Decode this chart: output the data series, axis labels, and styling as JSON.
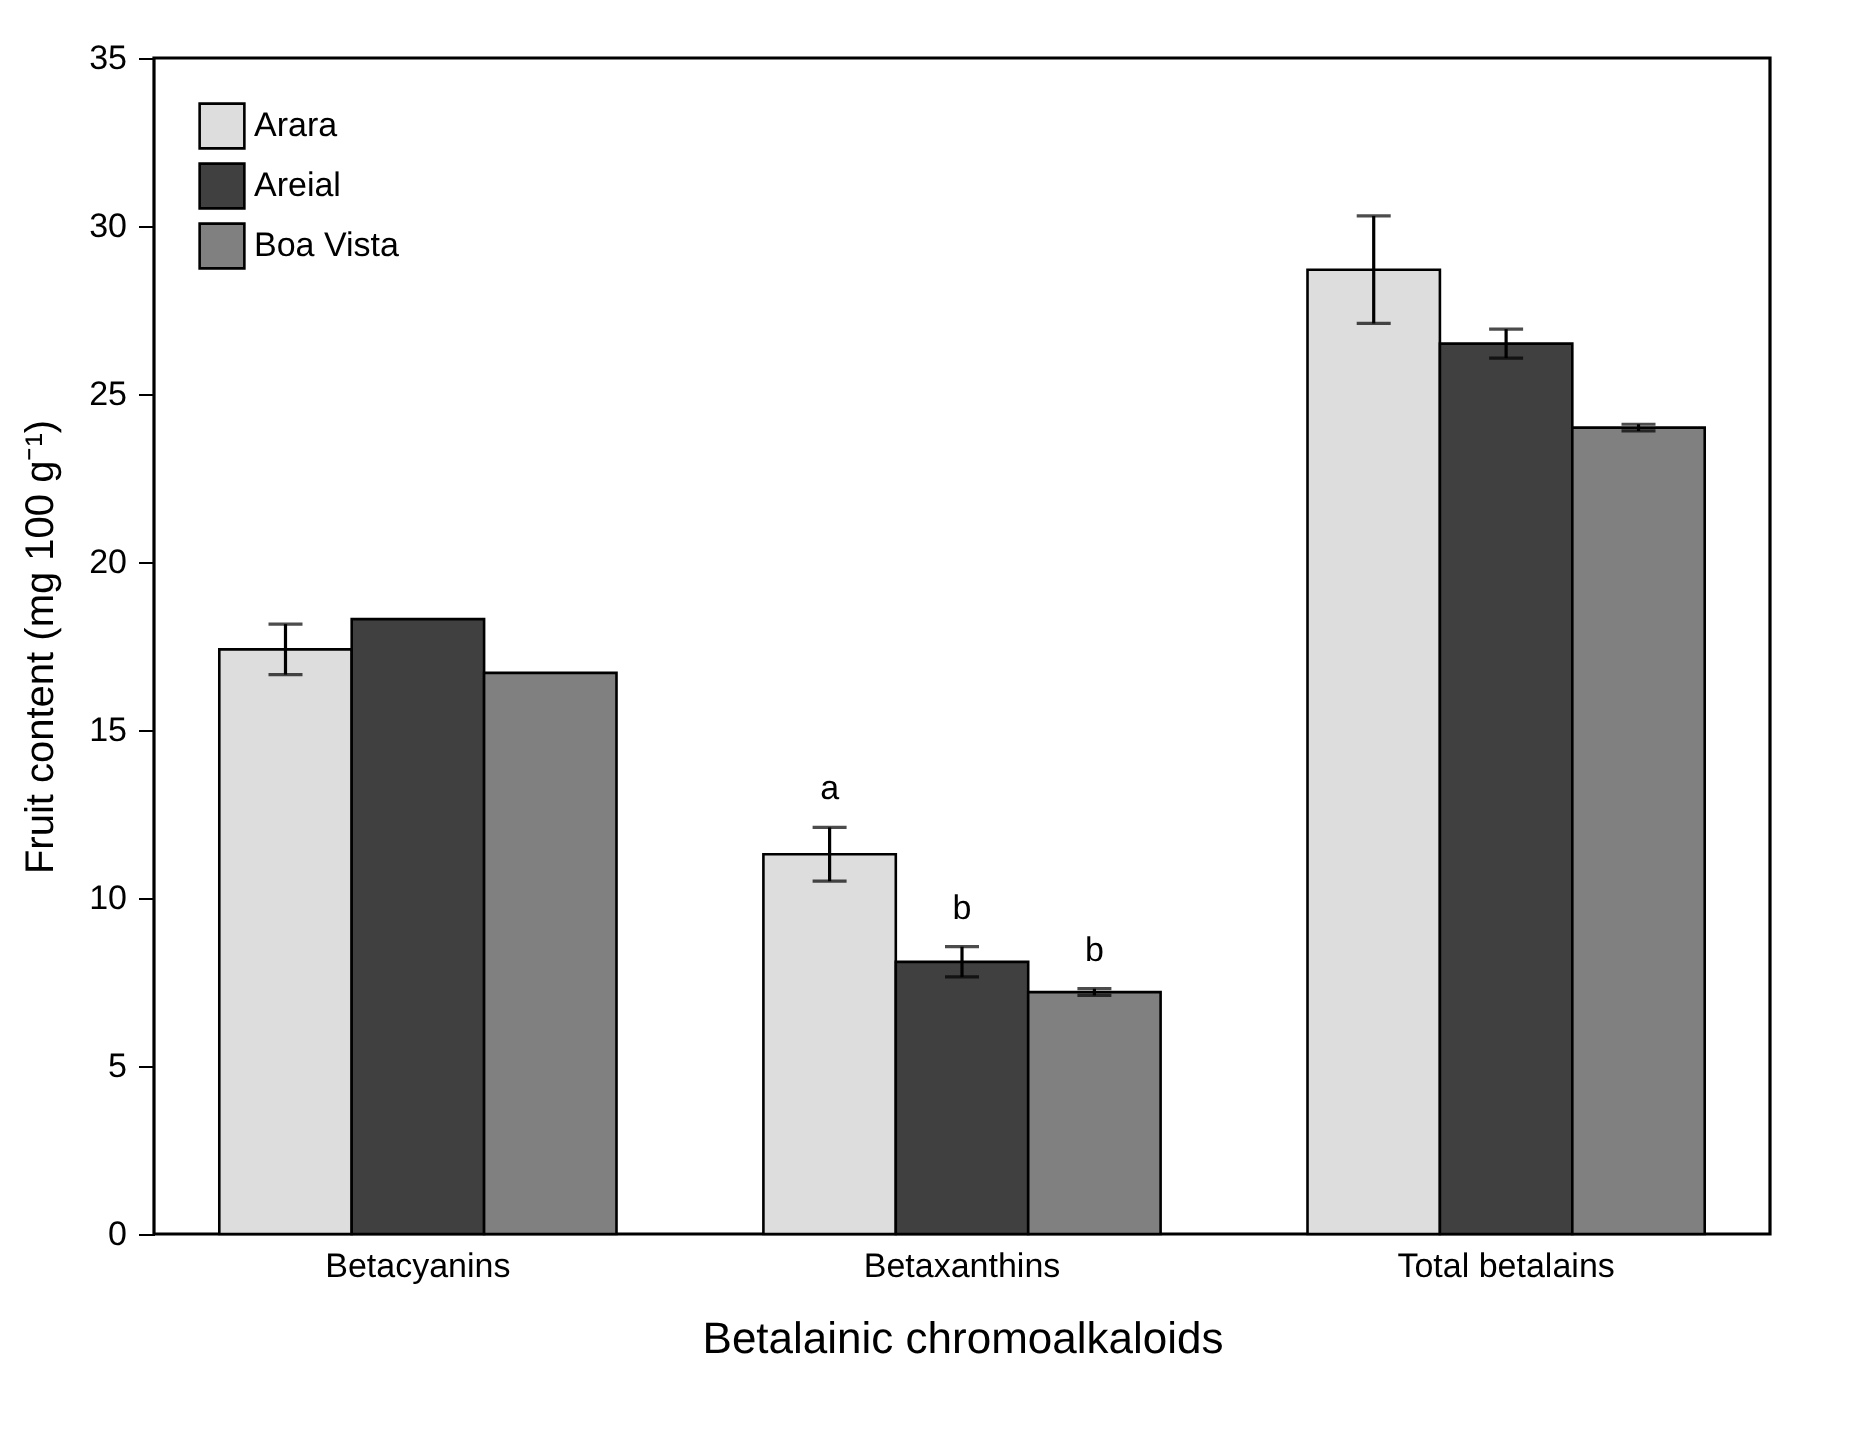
{
  "chart_data": {
    "type": "bar",
    "xlabel": "Betalainic chromoalkaloids",
    "ylabel": "Fruit content (mg 100 g⁻¹)",
    "categories": [
      "Betacyanins",
      "Betaxanthins",
      "Total betalains"
    ],
    "series": [
      {
        "name": "Arara",
        "color": "#dddddd",
        "values": [
          17.4,
          11.3,
          28.7
        ],
        "errors": [
          0.75,
          0.8,
          1.6
        ]
      },
      {
        "name": "Areial",
        "color": "#404040",
        "values": [
          18.3,
          8.1,
          26.5
        ],
        "errors": [
          null,
          0.45,
          0.43
        ]
      },
      {
        "name": "Boa Vista",
        "color": "#808080",
        "values": [
          16.7,
          7.2,
          24.0
        ],
        "errors": [
          null,
          0.1,
          0.1
        ]
      }
    ],
    "ylim": [
      0,
      35
    ],
    "yticks": [
      0,
      5,
      10,
      15,
      20,
      25,
      30,
      35
    ],
    "grid": false,
    "legend": "top left",
    "annotations": [
      "a",
      "b",
      "b"
    ]
  }
}
